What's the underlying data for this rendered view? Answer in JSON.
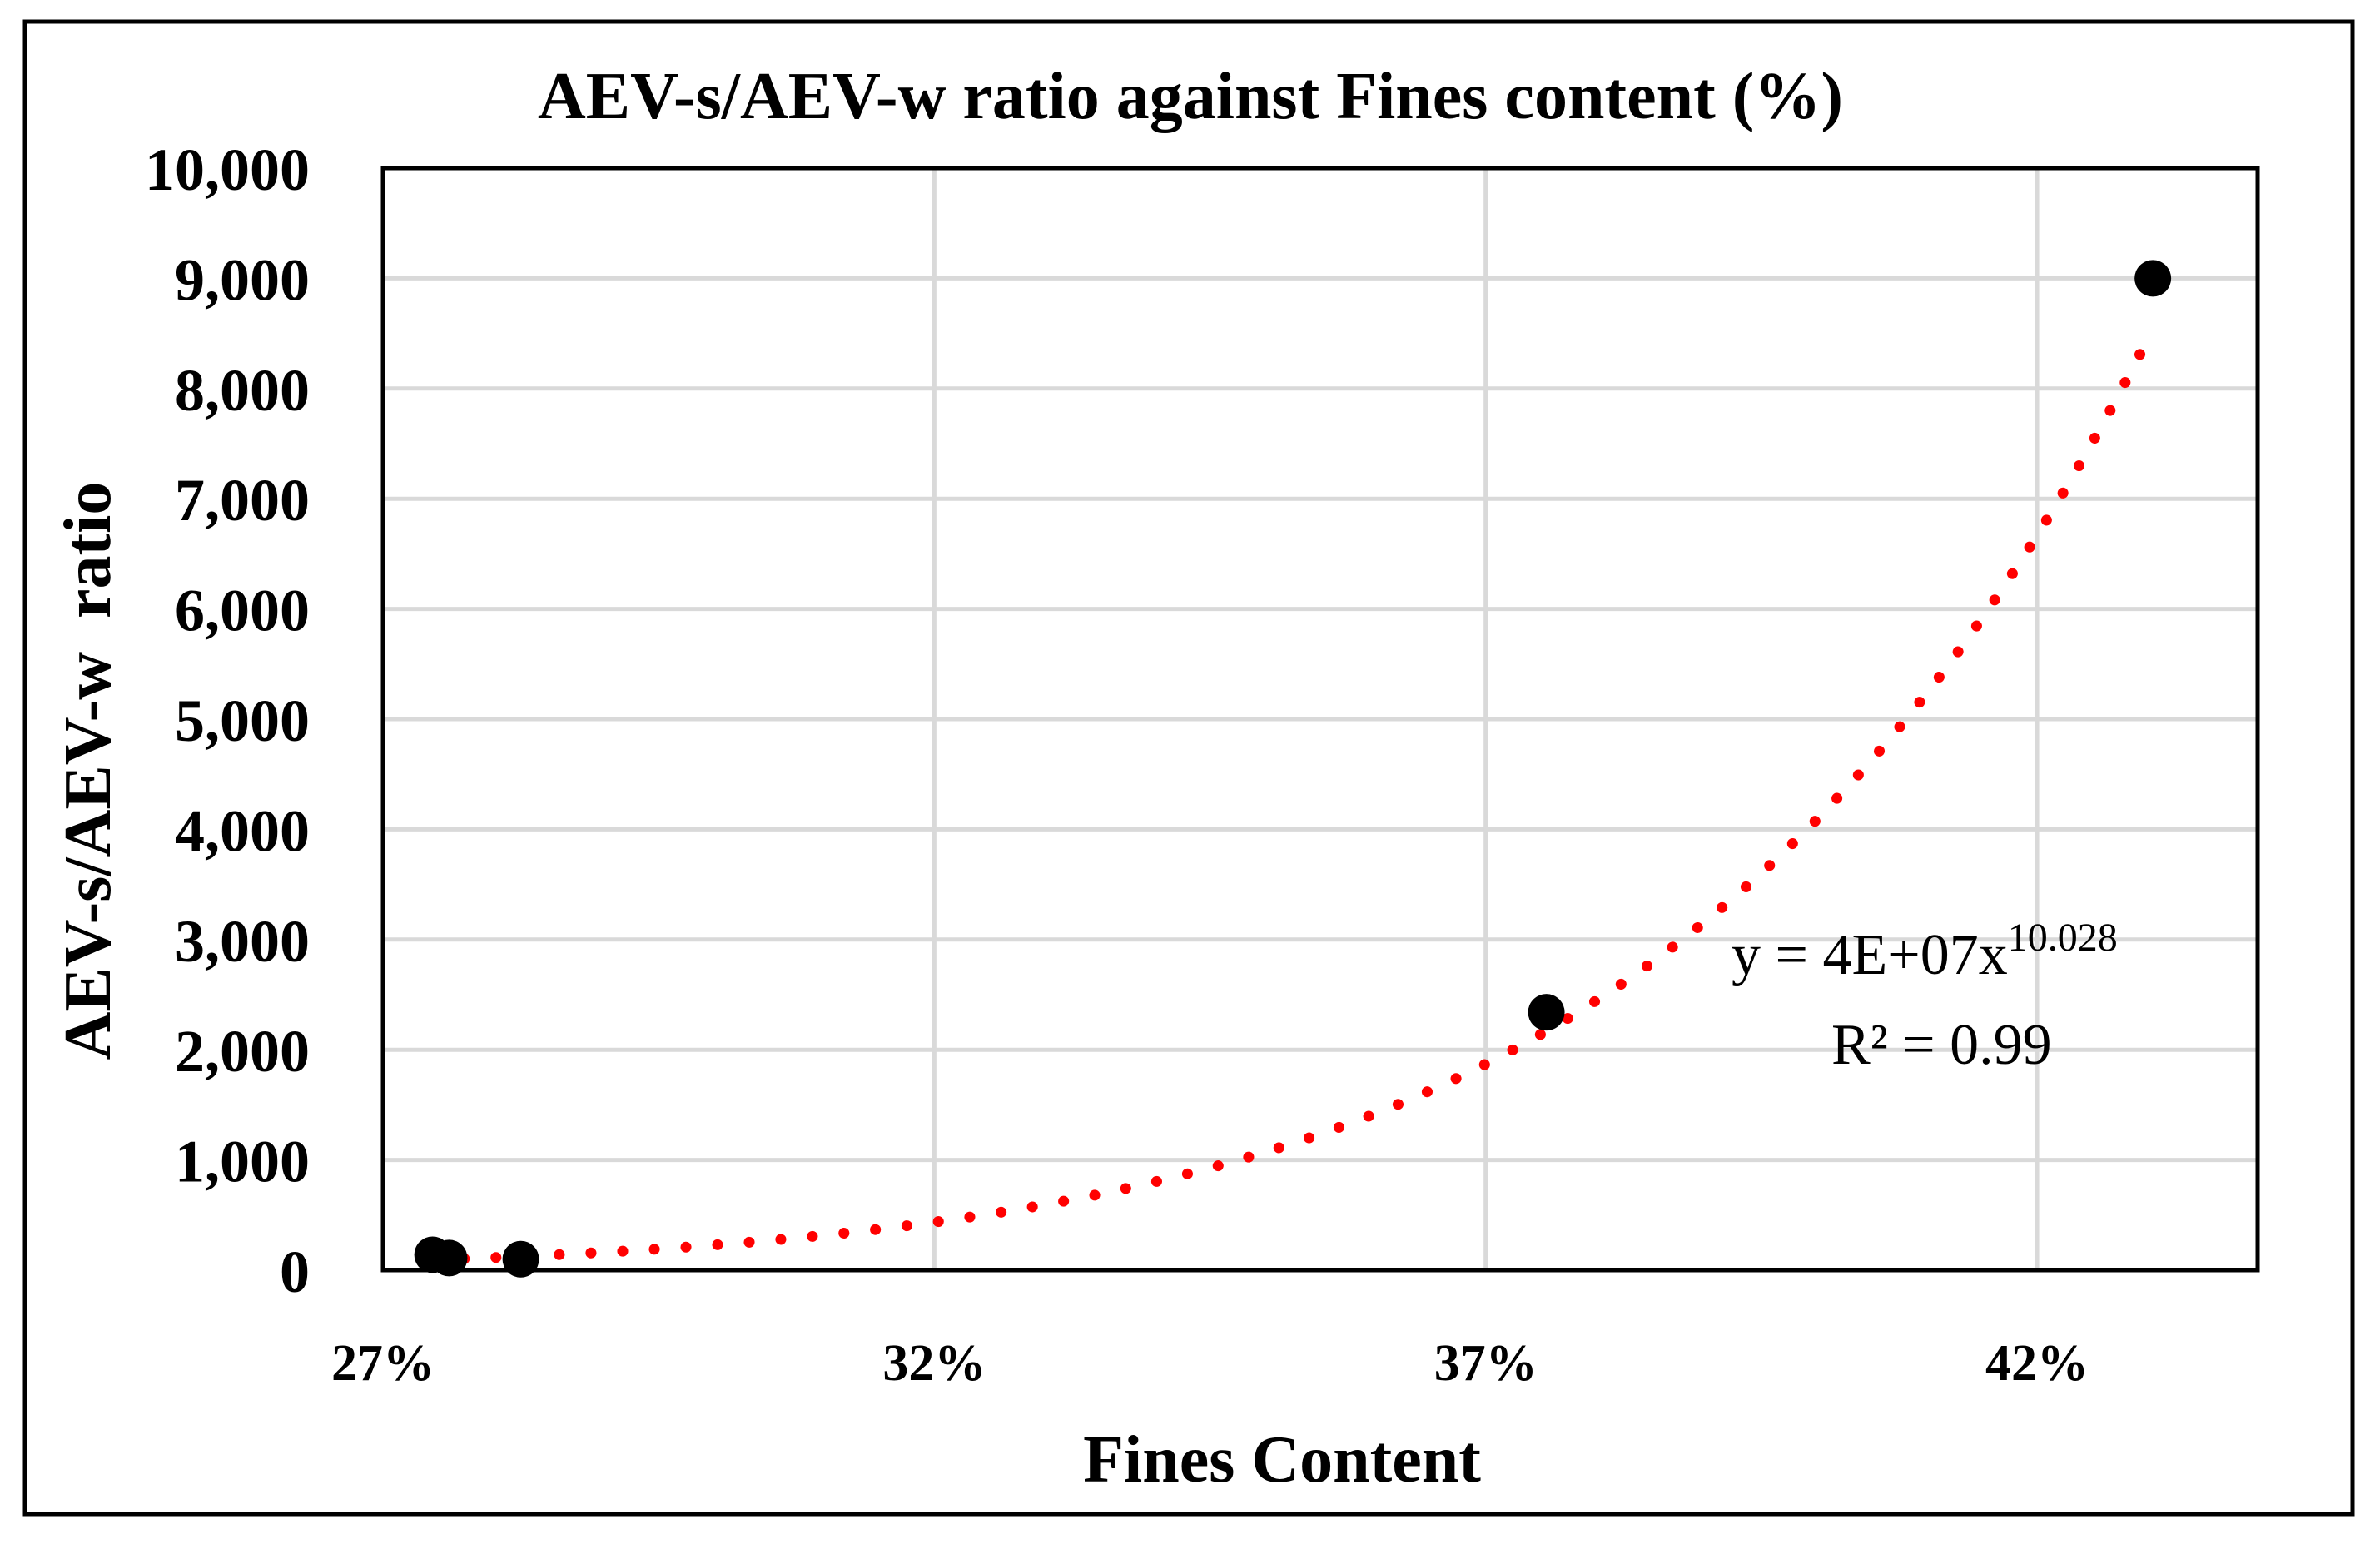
{
  "chart_data": {
    "type": "scatter",
    "title": "AEV-s/AEV-w ratio against Fines content (%)",
    "xlabel": "Fines Content",
    "ylabel": "AEV-s/AEV-w  ratio",
    "xlim": [
      0.27,
      0.44
    ],
    "ylim": [
      0,
      10000
    ],
    "x_ticks": [
      0.27,
      0.32,
      0.37,
      0.42
    ],
    "x_tick_labels": [
      "27%",
      "32%",
      "37%",
      "42%"
    ],
    "y_ticks": [
      0,
      1000,
      2000,
      3000,
      4000,
      5000,
      6000,
      7000,
      8000,
      9000,
      10000
    ],
    "y_tick_labels": [
      "0",
      "1,000",
      "2,000",
      "3,000",
      "4,000",
      "5,000",
      "6,000",
      "7,000",
      "8,000",
      "9,000",
      "10,000"
    ],
    "grid": true,
    "series": [
      {
        "points": [
          {
            "x": 0.2745,
            "y": 140
          },
          {
            "x": 0.276,
            "y": 110
          },
          {
            "x": 0.2825,
            "y": 100
          },
          {
            "x": 0.3755,
            "y": 2340
          },
          {
            "x": 0.4305,
            "y": 9000
          }
        ],
        "marker_color": "#000000"
      }
    ],
    "trendline": {
      "type": "power",
      "coefficient": 40000000,
      "exponent": 10.028,
      "x_range": [
        0.2745,
        0.4295
      ],
      "color": "#ff0000",
      "style": "dotted",
      "equation_text": "y = 4E+07x",
      "equation_exponent": "10.028",
      "r2_text": "R² = 0.99"
    }
  }
}
